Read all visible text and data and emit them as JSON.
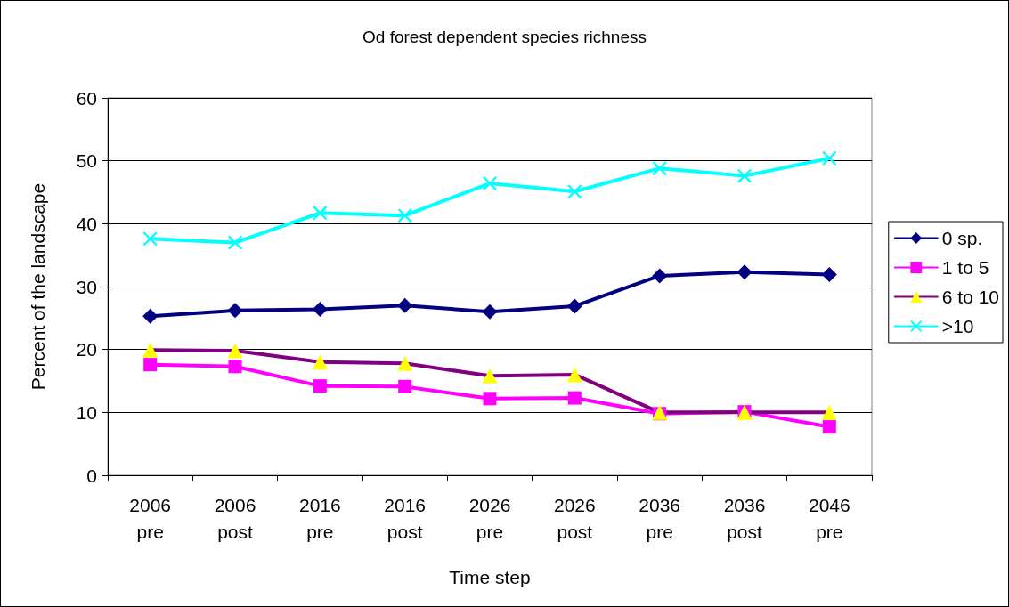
{
  "chart_data": {
    "type": "line",
    "title": "Od forest dependent species richness",
    "xlabel": "Time step",
    "ylabel": "Percent of the landscape",
    "categories": [
      "2006 pre",
      "2006 post",
      "2016 pre",
      "2016 post",
      "2026 pre",
      "2026 post",
      "2036 pre",
      "2036 post",
      "2046 pre"
    ],
    "series": [
      {
        "name": "0 sp.",
        "color": "#000080",
        "marker": "diamond",
        "values": [
          25.3,
          26.2,
          26.4,
          27.0,
          26.0,
          26.9,
          31.7,
          32.3,
          31.9
        ]
      },
      {
        "name": "1 to 5",
        "color": "#ff00ff",
        "marker": "square",
        "values": [
          17.6,
          17.3,
          14.2,
          14.1,
          12.2,
          12.3,
          9.8,
          10.1,
          7.7
        ]
      },
      {
        "name": "6 to 10",
        "color": "#800080",
        "colors": [
          "#ffff00",
          "#ffff00",
          "#ffff00",
          "#ffff00",
          "#ffff00",
          "#ffff00",
          "#ffff00",
          "#ffff00",
          "#ffff00"
        ],
        "marker": "triangle",
        "values": [
          19.9,
          19.8,
          18.0,
          17.8,
          15.8,
          16.0,
          10.0,
          10.0,
          10.0
        ]
      },
      {
        "name": ">10",
        "color": "#00ffff",
        "marker": "cross",
        "values": [
          37.6,
          37.0,
          41.7,
          41.3,
          46.4,
          45.1,
          48.8,
          47.6,
          50.4
        ]
      }
    ],
    "ylim": [
      0,
      60
    ],
    "yticks": [
      0,
      10,
      20,
      30,
      40,
      50,
      60
    ],
    "grid": "y",
    "legend": "right",
    "line_style": "solid"
  }
}
